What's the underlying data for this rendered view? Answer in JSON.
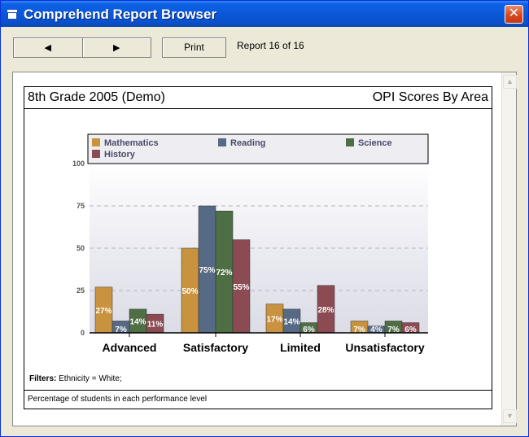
{
  "window": {
    "title": "Comprehend Report Browser",
    "close_glyph": "✕"
  },
  "toolbar": {
    "prev_glyph": "◀",
    "next_glyph": "▶",
    "print_label": "Print",
    "status": "Report 16 of 16"
  },
  "report": {
    "title_left": "8th Grade 2005 (Demo)",
    "title_right": "OPI Scores By Area",
    "filters_label": "Filters:",
    "filters_value": "Ethnicity = White;",
    "footer": "Percentage of students in each performance level"
  },
  "scrollbar": {
    "up_glyph": "▲",
    "down_glyph": "▼"
  },
  "chart_data": {
    "type": "bar",
    "categories": [
      "Advanced",
      "Satisfactory",
      "Limited",
      "Unsatisfactory"
    ],
    "series": [
      {
        "name": "Mathematics",
        "color": "#c8923e",
        "values": [
          27,
          50,
          17,
          7
        ],
        "labels": [
          "27%",
          "50%",
          "17%",
          "7%"
        ]
      },
      {
        "name": "Reading",
        "color": "#566a85",
        "values": [
          7,
          75,
          14,
          4
        ],
        "labels": [
          "7%",
          "75%",
          "14%",
          "4%"
        ]
      },
      {
        "name": "Science",
        "color": "#4e6e44",
        "values": [
          14,
          72,
          6,
          7
        ],
        "labels": [
          "14%",
          "72%",
          "6%",
          "7%"
        ]
      },
      {
        "name": "History",
        "color": "#8c4a52",
        "values": [
          11,
          55,
          28,
          6
        ],
        "labels": [
          "11%",
          "55%",
          "28%",
          "6%"
        ]
      }
    ],
    "yticks": [
      "0",
      "25",
      "50",
      "75",
      "100"
    ],
    "ylim": [
      0,
      100
    ],
    "grid": true,
    "legend_position": "top"
  }
}
